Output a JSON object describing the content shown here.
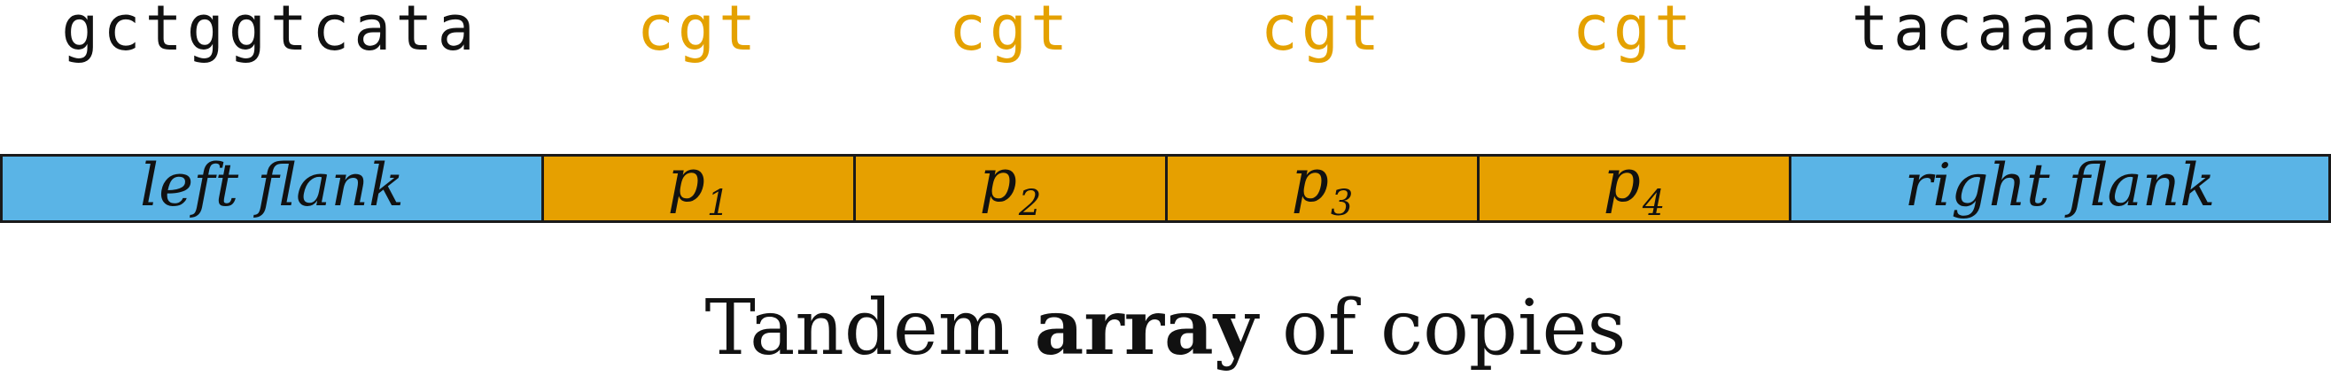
{
  "sequence": {
    "left_flank": "gctggtcata",
    "copies": [
      "cgt",
      "cgt",
      "cgt",
      "cgt"
    ],
    "right_flank": "tacaaacgtc"
  },
  "bar": {
    "left_flank_label": "left flank",
    "copy_labels": [
      {
        "base": "p",
        "sub": "1"
      },
      {
        "base": "p",
        "sub": "2"
      },
      {
        "base": "p",
        "sub": "3"
      },
      {
        "base": "p",
        "sub": "4"
      }
    ],
    "right_flank_label": "right flank"
  },
  "caption": {
    "prefix": "Tandem",
    "emphasis": "array",
    "suffix": "of copies"
  },
  "colors": {
    "flank_fill": "#5ab4e6",
    "copy_fill": "#e6a000",
    "copy_text": "#e4a100",
    "text": "#111111"
  }
}
